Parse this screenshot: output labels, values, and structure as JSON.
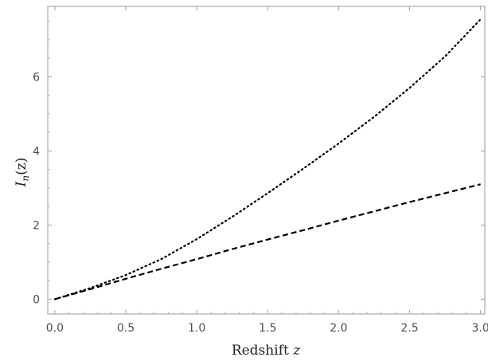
{
  "chart_data": {
    "type": "line",
    "title": "",
    "xlabel": "Redshift z",
    "xlabel_parts": {
      "text": "Redshift ",
      "var": "z"
    },
    "ylabel": "I_n(z)",
    "ylabel_parts": {
      "base": "I",
      "sub": "n",
      "arg": "(z)"
    },
    "xlim": [
      -0.05,
      3.03
    ],
    "ylim": [
      -0.4,
      7.9
    ],
    "x_ticks": [
      0.0,
      0.5,
      1.0,
      1.5,
      2.0,
      2.5,
      3.0
    ],
    "x_tick_labels": [
      "0.0",
      "0.5",
      "1.0",
      "1.5",
      "2.0",
      "2.5",
      "3.0"
    ],
    "y_ticks": [
      0,
      2,
      4,
      6
    ],
    "y_tick_labels": [
      "0",
      "2",
      "4",
      "6"
    ],
    "grid": false,
    "series": [
      {
        "style": "dotted",
        "x": [
          0.0,
          0.25,
          0.5,
          0.75,
          1.0,
          1.25,
          1.5,
          1.75,
          2.0,
          2.25,
          2.5,
          2.75,
          3.0
        ],
        "y": [
          0.0,
          0.3,
          0.65,
          1.08,
          1.62,
          2.22,
          2.86,
          3.52,
          4.2,
          4.92,
          5.7,
          6.55,
          7.55
        ]
      },
      {
        "style": "dashed",
        "x": [
          0.0,
          0.25,
          0.5,
          0.75,
          1.0,
          1.25,
          1.5,
          1.75,
          2.0,
          2.25,
          2.5,
          2.75,
          3.0
        ],
        "y": [
          0.0,
          0.27,
          0.55,
          0.82,
          1.08,
          1.35,
          1.61,
          1.86,
          2.12,
          2.37,
          2.62,
          2.86,
          3.1
        ]
      }
    ]
  }
}
